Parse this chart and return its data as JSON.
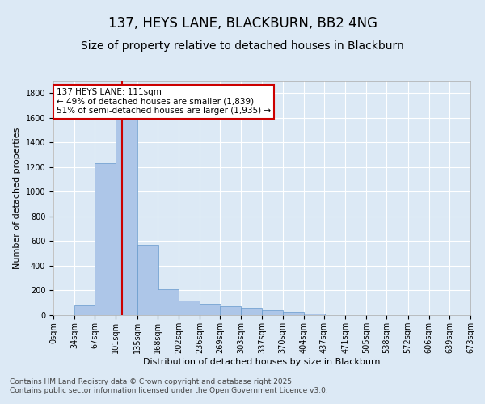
{
  "title": "137, HEYS LANE, BLACKBURN, BB2 4NG",
  "subtitle": "Size of property relative to detached houses in Blackburn",
  "xlabel": "Distribution of detached houses by size in Blackburn",
  "ylabel": "Number of detached properties",
  "bins": [
    0,
    34,
    67,
    101,
    135,
    168,
    202,
    236,
    269,
    303,
    337,
    370,
    404,
    437,
    471,
    505,
    538,
    572,
    606,
    639,
    673
  ],
  "counts": [
    0,
    80,
    1230,
    1700,
    570,
    210,
    115,
    95,
    75,
    60,
    40,
    25,
    10,
    0,
    0,
    0,
    0,
    0,
    0,
    0
  ],
  "bar_color": "#adc6e8",
  "bar_edge_color": "#6699cc",
  "red_line_x": 111,
  "annotation_text": "137 HEYS LANE: 111sqm\n← 49% of detached houses are smaller (1,839)\n51% of semi-detached houses are larger (1,935) →",
  "annotation_box_color": "#ffffff",
  "annotation_box_edge_color": "#cc0000",
  "ylim": [
    0,
    1900
  ],
  "yticks": [
    0,
    200,
    400,
    600,
    800,
    1000,
    1200,
    1400,
    1600,
    1800
  ],
  "background_color": "#dce9f5",
  "plot_bg_color": "#dce9f5",
  "grid_color": "#ffffff",
  "footer_line1": "Contains HM Land Registry data © Crown copyright and database right 2025.",
  "footer_line2": "Contains public sector information licensed under the Open Government Licence v3.0.",
  "title_fontsize": 12,
  "subtitle_fontsize": 10,
  "axis_label_fontsize": 8,
  "tick_fontsize": 7,
  "annotation_fontsize": 7.5,
  "footer_fontsize": 6.5
}
